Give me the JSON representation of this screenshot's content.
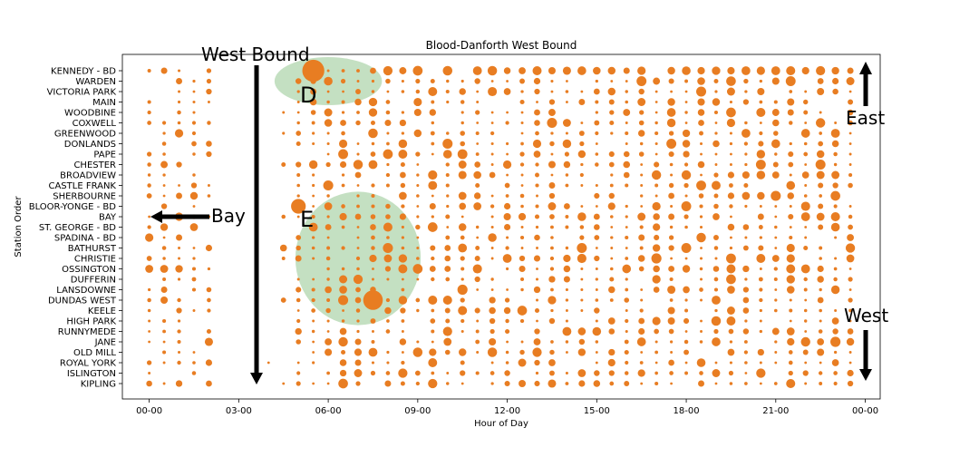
{
  "chart_data": {
    "type": "scatter",
    "title": "Blood-Danforth West Bound",
    "xlabel": "Hour of Day",
    "ylabel": "Station Order",
    "xlim": [
      -0.9,
      24.5
    ],
    "x_ticks": [
      {
        "value": 0,
        "label": "00-00"
      },
      {
        "value": 3,
        "label": "03-00"
      },
      {
        "value": 6,
        "label": "06-00"
      },
      {
        "value": 9,
        "label": "09-00"
      },
      {
        "value": 12,
        "label": "12-00"
      },
      {
        "value": 15,
        "label": "15-00"
      },
      {
        "value": 18,
        "label": "18-00"
      },
      {
        "value": 21,
        "label": "21-00"
      },
      {
        "value": 24,
        "label": "00-00"
      }
    ],
    "stations": [
      "KENNEDY - BD",
      "WARDEN",
      "VICTORIA PARK",
      "MAIN",
      "WOODBINE",
      "COXWELL",
      "GREENWOOD",
      "DONLANDS",
      "PAPE",
      "CHESTER",
      "BROADVIEW",
      "CASTLE FRANK",
      "SHERBOURNE",
      "BLOOR-YONGE - BD",
      "BAY",
      "ST. GEORGE - BD",
      "SPADINA - BD",
      "BATHURST",
      "CHRISTIE",
      "OSSINGTON",
      "DUFFERIN",
      "LANSDOWNE",
      "DUNDAS WEST",
      "KEELE",
      "HIGH PARK",
      "RUNNYMEDE",
      "JANE",
      "OLD MILL",
      "ROYAL YORK",
      "ISLINGTON",
      "KIPLING"
    ],
    "point_color": "#e87d22",
    "grid": false,
    "highlights": [
      {
        "label": "D",
        "x_center": 6.0,
        "station_center": 1.0,
        "x_radius": 1.8,
        "station_radius": 2.3,
        "color": "#9dcc9a"
      },
      {
        "label": "E",
        "x_center": 7.0,
        "station_center": 18.0,
        "x_radius": 2.1,
        "station_radius": 6.4,
        "color": "#9dcc9a"
      }
    ],
    "highlight_points": [
      {
        "x": 5.5,
        "station": "KENNEDY - BD",
        "size": 9
      },
      {
        "x": 5.0,
        "station": "BLOOR-YONGE - BD",
        "size": 6
      },
      {
        "x": 7.5,
        "station": "DUNDAS WEST",
        "size": 8
      }
    ],
    "annotations": [
      {
        "text": "West Bound",
        "position": "upper-left inside plot",
        "arrow": "down"
      },
      {
        "text": "D",
        "position": "inside highlight D"
      },
      {
        "text": "E",
        "position": "inside highlight E"
      },
      {
        "text": "Bay",
        "position": "left, at BAY row",
        "arrow": "left"
      },
      {
        "text": "East",
        "position": "right edge, upper",
        "arrow": "up"
      },
      {
        "text": "West",
        "position": "right edge, lower",
        "arrow": "down"
      }
    ]
  }
}
